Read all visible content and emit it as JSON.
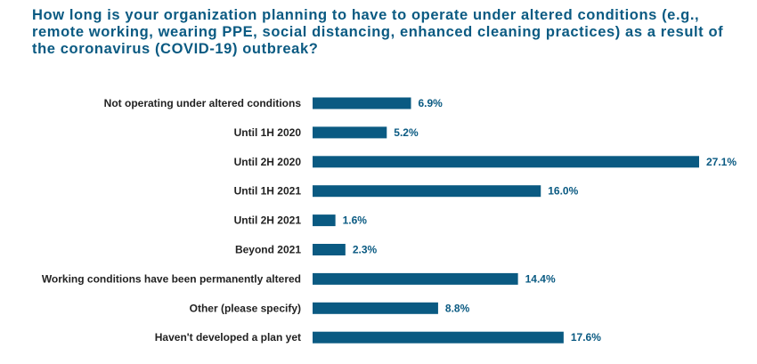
{
  "chart_data": {
    "type": "bar",
    "orientation": "horizontal",
    "title": "How long is your organization planning to have to operate under altered conditions (e.g., remote working, wearing PPE, social distancing, enhanced cleaning practices) as a result of the coronavirus (COVID-19) outbreak?",
    "categories": [
      "Not operating under altered conditions",
      "Until 1H 2020",
      "Until 2H 2020",
      "Until 1H 2021",
      "Until 2H 2021",
      "Beyond 2021",
      "Working conditions have been permanently altered",
      "Other (please specify)",
      "Haven't developed a plan yet"
    ],
    "values": [
      6.9,
      5.2,
      27.1,
      16.0,
      1.6,
      2.3,
      14.4,
      8.8,
      17.6
    ],
    "value_labels": [
      "6.9%",
      "5.2%",
      "27.1%",
      "16.0%",
      "1.6%",
      "2.3%",
      "14.4%",
      "8.8%",
      "17.6%"
    ],
    "xlim": [
      0,
      27.1
    ],
    "grid": false,
    "bar_color": "#0a5a82"
  }
}
